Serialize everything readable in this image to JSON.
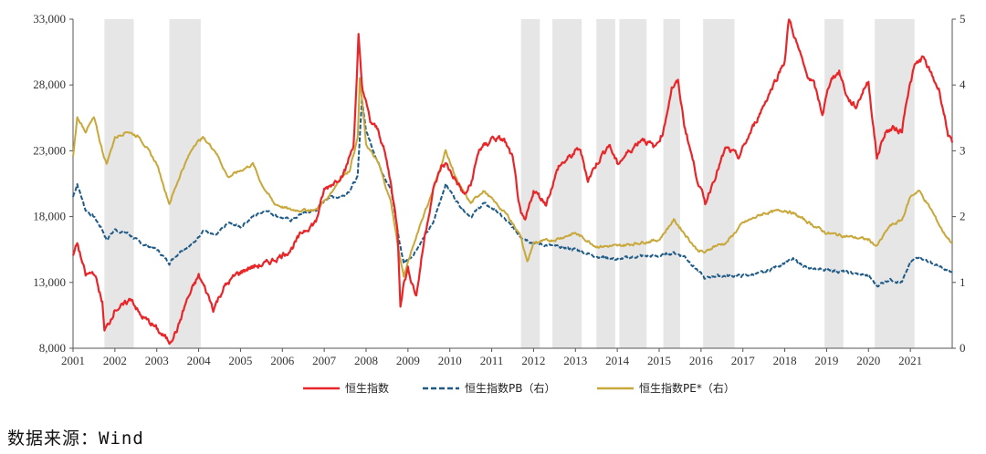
{
  "chart_data": {
    "type": "line",
    "title": "",
    "x_range": [
      2001,
      2022
    ],
    "x_ticks": [
      "2001",
      "2002",
      "2003",
      "2004",
      "2005",
      "2006",
      "2007",
      "2008",
      "2009",
      "2010",
      "2011",
      "2012",
      "2013",
      "2014",
      "2015",
      "2016",
      "2017",
      "2018",
      "2019",
      "2020",
      "2021"
    ],
    "y_left": {
      "range": [
        8000,
        33000
      ],
      "ticks": [
        8000,
        13000,
        18000,
        23000,
        28000,
        33000
      ],
      "tick_labels": [
        "8,000",
        "13,000",
        "18,000",
        "23,000",
        "28,000",
        "33,000"
      ]
    },
    "y_right": {
      "range": [
        0,
        5
      ],
      "ticks": [
        0,
        1,
        2,
        3,
        4,
        5
      ],
      "tick_labels": [
        "0",
        "1",
        "2",
        "3",
        "4",
        "5"
      ]
    },
    "shaded_periods": [
      [
        2001.75,
        2002.45
      ],
      [
        2003.3,
        2004.05
      ],
      [
        2011.7,
        2012.15
      ],
      [
        2012.45,
        2013.15
      ],
      [
        2013.5,
        2013.95
      ],
      [
        2014.05,
        2014.7
      ],
      [
        2015.1,
        2015.5
      ],
      [
        2016.05,
        2016.8
      ],
      [
        2018.95,
        2019.4
      ],
      [
        2020.15,
        2021.1
      ]
    ],
    "series": [
      {
        "name": "恒生指数",
        "axis": "left",
        "color": "#e8262a",
        "style": "solid",
        "x": [
          2001.0,
          2001.1,
          2001.3,
          2001.5,
          2001.7,
          2001.75,
          2001.85,
          2002.0,
          2002.2,
          2002.4,
          2002.6,
          2002.9,
          2003.1,
          2003.3,
          2003.5,
          2003.7,
          2004.0,
          2004.2,
          2004.35,
          2004.6,
          2004.9,
          2005.2,
          2005.6,
          2005.9,
          2006.2,
          2006.5,
          2006.8,
          2007.0,
          2007.3,
          2007.5,
          2007.7,
          2007.78,
          2007.82,
          2007.9,
          2008.1,
          2008.3,
          2008.45,
          2008.6,
          2008.75,
          2008.82,
          2008.9,
          2009.0,
          2009.2,
          2009.4,
          2009.6,
          2009.8,
          2009.9,
          2010.1,
          2010.35,
          2010.5,
          2010.7,
          2010.9,
          2011.0,
          2011.3,
          2011.5,
          2011.7,
          2011.8,
          2012.0,
          2012.3,
          2012.6,
          2012.9,
          2013.1,
          2013.3,
          2013.5,
          2013.8,
          2014.0,
          2014.3,
          2014.6,
          2014.9,
          2015.1,
          2015.3,
          2015.45,
          2015.6,
          2015.9,
          2016.1,
          2016.3,
          2016.6,
          2016.9,
          2017.2,
          2017.5,
          2017.8,
          2018.0,
          2018.1,
          2018.3,
          2018.5,
          2018.7,
          2018.9,
          2019.1,
          2019.3,
          2019.5,
          2019.7,
          2019.9,
          2020.0,
          2020.2,
          2020.4,
          2020.6,
          2020.8,
          2020.9,
          2021.1,
          2021.3,
          2021.5,
          2021.7,
          2021.9,
          2022.0
        ],
        "values": [
          15000,
          16000,
          13500,
          13800,
          11500,
          9300,
          9800,
          11000,
          11200,
          11800,
          10500,
          9800,
          9100,
          8500,
          9500,
          11500,
          13500,
          12200,
          11000,
          12600,
          13600,
          14100,
          14400,
          14900,
          15500,
          16900,
          17600,
          20000,
          20800,
          21500,
          23500,
          28500,
          31600,
          28000,
          25200,
          24500,
          22800,
          20400,
          17000,
          11400,
          13000,
          14000,
          12000,
          16500,
          20000,
          21800,
          22000,
          21000,
          19600,
          20400,
          23100,
          23500,
          24000,
          23800,
          22400,
          18000,
          17600,
          20000,
          19000,
          21800,
          22600,
          23200,
          20800,
          22000,
          23500,
          22000,
          23000,
          24000,
          23200,
          24500,
          27800,
          28200,
          25000,
          21000,
          19000,
          20800,
          23200,
          22500,
          24500,
          26500,
          28500,
          29900,
          33000,
          31000,
          29000,
          28000,
          25800,
          28500,
          29000,
          27000,
          26300,
          27800,
          28200,
          22500,
          24400,
          24700,
          24500,
          26800,
          29400,
          30100,
          28800,
          27500,
          24300,
          23400
        ]
      },
      {
        "name": "恒生指数PB（右）",
        "axis": "right",
        "color": "#1f5b87",
        "style": "dashed",
        "x": [
          2001.0,
          2001.1,
          2001.3,
          2001.5,
          2001.7,
          2001.8,
          2002.0,
          2002.3,
          2002.6,
          2003.0,
          2003.3,
          2003.6,
          2003.9,
          2004.1,
          2004.4,
          2004.7,
          2005.0,
          2005.3,
          2005.6,
          2005.9,
          2006.2,
          2006.5,
          2006.8,
          2007.1,
          2007.4,
          2007.6,
          2007.8,
          2007.9,
          2008.0,
          2008.3,
          2008.6,
          2008.8,
          2008.9,
          2009.1,
          2009.3,
          2009.6,
          2009.9,
          2010.2,
          2010.5,
          2010.8,
          2011.1,
          2011.4,
          2011.7,
          2012.0,
          2012.5,
          2013.0,
          2013.5,
          2014.0,
          2014.5,
          2015.0,
          2015.35,
          2015.6,
          2015.9,
          2016.1,
          2016.3,
          2016.6,
          2017.0,
          2017.5,
          2018.0,
          2018.2,
          2018.6,
          2019.0,
          2019.5,
          2020.0,
          2020.2,
          2020.5,
          2020.8,
          2021.0,
          2021.2,
          2021.5,
          2021.8,
          2022.0
        ],
        "values": [
          2.3,
          2.5,
          2.1,
          2.0,
          1.8,
          1.65,
          1.8,
          1.75,
          1.6,
          1.5,
          1.3,
          1.5,
          1.6,
          1.8,
          1.7,
          1.9,
          1.85,
          2.0,
          2.1,
          2.0,
          1.95,
          2.05,
          2.1,
          2.3,
          2.3,
          2.4,
          2.6,
          3.8,
          3.3,
          2.8,
          2.4,
          1.6,
          1.3,
          1.4,
          1.6,
          1.9,
          2.5,
          2.2,
          2.0,
          2.2,
          2.1,
          1.9,
          1.7,
          1.6,
          1.55,
          1.5,
          1.4,
          1.35,
          1.4,
          1.4,
          1.45,
          1.4,
          1.2,
          1.05,
          1.1,
          1.1,
          1.1,
          1.15,
          1.3,
          1.35,
          1.2,
          1.2,
          1.15,
          1.1,
          0.95,
          1.05,
          1.0,
          1.3,
          1.4,
          1.3,
          1.2,
          1.15
        ]
      },
      {
        "name": "恒生指数PE*（右）",
        "axis": "right",
        "color": "#c8a83a",
        "style": "solid",
        "x": [
          2001.0,
          2001.1,
          2001.3,
          2001.5,
          2001.7,
          2001.8,
          2002.0,
          2002.3,
          2002.6,
          2003.0,
          2003.3,
          2003.6,
          2003.9,
          2004.1,
          2004.4,
          2004.7,
          2005.0,
          2005.3,
          2005.5,
          2005.8,
          2006.2,
          2006.5,
          2006.8,
          2007.1,
          2007.4,
          2007.6,
          2007.8,
          2007.85,
          2008.0,
          2008.3,
          2008.6,
          2008.8,
          2008.9,
          2009.1,
          2009.3,
          2009.6,
          2009.9,
          2010.2,
          2010.5,
          2010.8,
          2011.1,
          2011.4,
          2011.7,
          2011.85,
          2012.0,
          2012.5,
          2013.0,
          2013.5,
          2014.0,
          2014.5,
          2015.0,
          2015.35,
          2015.6,
          2015.9,
          2016.1,
          2016.3,
          2016.6,
          2017.0,
          2017.5,
          2018.0,
          2018.2,
          2018.6,
          2019.0,
          2019.5,
          2020.0,
          2020.2,
          2020.5,
          2020.8,
          2021.0,
          2021.2,
          2021.5,
          2021.8,
          2022.0
        ],
        "values": [
          2.9,
          3.5,
          3.3,
          3.5,
          3.0,
          2.8,
          3.2,
          3.3,
          3.2,
          2.8,
          2.2,
          2.7,
          3.1,
          3.2,
          3.0,
          2.6,
          2.7,
          2.8,
          2.5,
          2.2,
          2.1,
          2.1,
          2.1,
          2.3,
          2.6,
          2.7,
          3.2,
          4.1,
          3.1,
          2.8,
          2.2,
          1.4,
          1.1,
          1.5,
          1.9,
          2.4,
          3.0,
          2.5,
          2.2,
          2.4,
          2.2,
          2.0,
          1.7,
          1.3,
          1.6,
          1.65,
          1.75,
          1.55,
          1.55,
          1.6,
          1.65,
          1.95,
          1.75,
          1.5,
          1.45,
          1.55,
          1.6,
          1.9,
          2.05,
          2.1,
          2.05,
          1.9,
          1.75,
          1.7,
          1.65,
          1.55,
          1.85,
          1.95,
          2.3,
          2.4,
          2.1,
          1.75,
          1.6
        ]
      }
    ]
  },
  "legend": [
    {
      "label": "恒生指数",
      "color": "#e8262a",
      "style": "solid"
    },
    {
      "label": "恒生指数PB（右）",
      "color": "#1f5b87",
      "style": "dashed"
    },
    {
      "label": "恒生指数PE*（右）",
      "color": "#c8a83a",
      "style": "solid"
    }
  ],
  "source": "数据来源：Wind"
}
